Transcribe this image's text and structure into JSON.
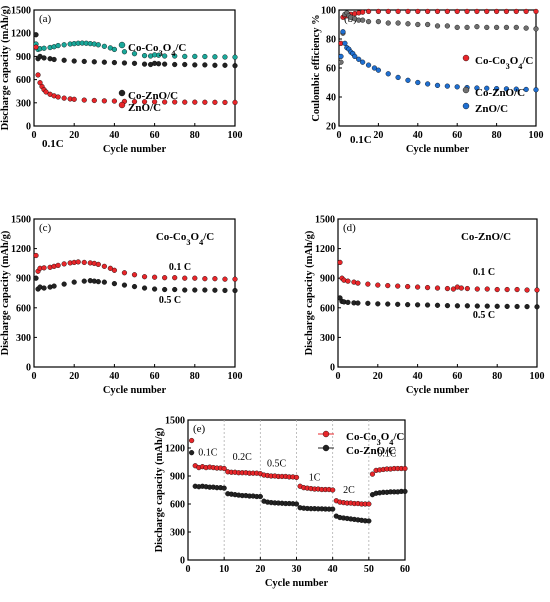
{
  "colors": {
    "red": "#e8262a",
    "black": "#222222",
    "teal": "#1aa89a",
    "blue": "#1f6fd1",
    "gray": "#707070",
    "rate_divider": "#b0b0b0"
  },
  "marker": "filled-circle",
  "chart_data": [
    {
      "id": "a",
      "type": "scatter",
      "panel_label": "(a)",
      "xlabel": "Cycle number",
      "ylabel": "Discharge capacity (mAh/g)",
      "xlim": [
        0,
        100
      ],
      "ylim": [
        0,
        1500
      ],
      "xticks": [
        0,
        20,
        40,
        60,
        80,
        100
      ],
      "yticks": [
        0,
        300,
        600,
        900,
        1200,
        1500
      ],
      "annotation": "0.1C",
      "legend_position": "right",
      "series": [
        {
          "name": "Co-Co3O4/C",
          "color": "teal",
          "x": [
            1,
            2,
            3,
            5,
            8,
            10,
            12,
            15,
            18,
            20,
            22,
            24,
            26,
            28,
            30,
            32,
            35,
            38,
            40,
            45,
            50,
            55,
            58,
            60,
            62,
            65,
            70,
            75,
            80,
            85,
            90,
            95,
            100
          ],
          "y": [
            1060,
            990,
            1000,
            1005,
            1015,
            1025,
            1040,
            1050,
            1060,
            1065,
            1070,
            1072,
            1070,
            1065,
            1060,
            1050,
            1030,
            1010,
            990,
            960,
            935,
            910,
            905,
            920,
            915,
            905,
            905,
            900,
            900,
            898,
            895,
            892,
            890
          ]
        },
        {
          "name": "Co-ZnO/C",
          "color": "black",
          "x": [
            1,
            2,
            3,
            5,
            8,
            10,
            15,
            20,
            25,
            30,
            35,
            40,
            45,
            50,
            55,
            58,
            60,
            62,
            65,
            70,
            75,
            80,
            85,
            90,
            95,
            100
          ],
          "y": [
            1180,
            870,
            900,
            880,
            870,
            860,
            850,
            840,
            835,
            830,
            825,
            820,
            815,
            810,
            800,
            795,
            810,
            805,
            800,
            795,
            795,
            790,
            790,
            785,
            785,
            780
          ]
        },
        {
          "name": "ZnO/C",
          "color": "red",
          "x": [
            1,
            2,
            3,
            4,
            5,
            6,
            8,
            10,
            12,
            15,
            18,
            20,
            25,
            30,
            35,
            40,
            45,
            50,
            55,
            60,
            65,
            70,
            75,
            80,
            85,
            90,
            95,
            100
          ],
          "y": [
            1020,
            660,
            560,
            510,
            470,
            440,
            410,
            390,
            375,
            360,
            350,
            345,
            335,
            330,
            325,
            322,
            318,
            315,
            313,
            312,
            310,
            310,
            308,
            308,
            307,
            306,
            305,
            305
          ]
        }
      ]
    },
    {
      "id": "b",
      "type": "scatter",
      "panel_label": "(b)",
      "xlabel": "Cycle number",
      "ylabel": "Coulombic efficiency %",
      "xlim": [
        0,
        100
      ],
      "ylim": [
        20,
        100
      ],
      "xticks": [
        0,
        20,
        40,
        60,
        80,
        100
      ],
      "yticks": [
        20,
        40,
        60,
        80,
        100
      ],
      "annotation": "0.1C",
      "legend_position": "right",
      "series": [
        {
          "name": "Co-Co3O4/C",
          "color": "red",
          "x": [
            1,
            2,
            3,
            4,
            5,
            6,
            8,
            10,
            12,
            15,
            20,
            25,
            30,
            35,
            40,
            45,
            50,
            55,
            60,
            65,
            70,
            75,
            80,
            85,
            90,
            95,
            100
          ],
          "y": [
            77,
            95,
            96,
            96,
            97,
            97,
            97.5,
            98,
            98.5,
            99,
            99,
            99,
            99,
            99,
            99,
            99,
            99,
            99,
            99,
            99,
            99,
            99,
            99,
            99,
            99,
            99,
            99
          ]
        },
        {
          "name": "Co-ZnO/C",
          "color": "gray",
          "x": [
            1,
            2,
            3,
            4,
            5,
            6,
            8,
            10,
            12,
            15,
            20,
            25,
            30,
            35,
            40,
            45,
            50,
            55,
            60,
            65,
            70,
            75,
            80,
            85,
            90,
            95,
            100
          ],
          "y": [
            64,
            84,
            97,
            98,
            96,
            95,
            94,
            93,
            93,
            92,
            92,
            91,
            91,
            90.5,
            90,
            90,
            89,
            89,
            88,
            88,
            88.5,
            88,
            88,
            88,
            88,
            87.5,
            87
          ]
        },
        {
          "name": "ZnO/C",
          "color": "blue",
          "x": [
            1,
            2,
            3,
            4,
            5,
            6,
            7,
            8,
            10,
            12,
            15,
            18,
            20,
            25,
            30,
            35,
            40,
            45,
            50,
            55,
            60,
            65,
            70,
            75,
            80,
            85,
            90,
            95,
            100
          ],
          "y": [
            68,
            85,
            77,
            74,
            73,
            71,
            70,
            68,
            66,
            64,
            62,
            60,
            58.5,
            56,
            53.5,
            51.5,
            50,
            49,
            48,
            47.5,
            47,
            46.5,
            46.2,
            46,
            45.8,
            45.6,
            45.4,
            45.2,
            45
          ]
        }
      ]
    },
    {
      "id": "c",
      "type": "scatter",
      "panel_label": "(c)",
      "title": "Co-Co3O4/C",
      "xlabel": "Cycle number",
      "ylabel": "Discharge capacity (mAh/g)",
      "xlim": [
        0,
        100
      ],
      "ylim": [
        0,
        1500
      ],
      "xticks": [
        0,
        20,
        40,
        60,
        80,
        100
      ],
      "yticks": [
        0,
        300,
        600,
        900,
        1200,
        1500
      ],
      "series": [
        {
          "name": "0.1 C",
          "color": "red",
          "x": [
            1,
            2,
            3,
            5,
            8,
            10,
            12,
            15,
            18,
            20,
            22,
            25,
            28,
            30,
            32,
            35,
            38,
            40,
            45,
            50,
            55,
            60,
            65,
            70,
            75,
            80,
            85,
            90,
            95,
            100
          ],
          "y": [
            1130,
            970,
            1000,
            1005,
            1010,
            1020,
            1030,
            1045,
            1055,
            1060,
            1065,
            1060,
            1055,
            1050,
            1040,
            1020,
            1000,
            980,
            955,
            935,
            915,
            910,
            905,
            905,
            900,
            900,
            895,
            895,
            890,
            890
          ]
        },
        {
          "name": "0.5 C",
          "color": "black",
          "x": [
            1,
            2,
            3,
            5,
            8,
            10,
            15,
            20,
            25,
            28,
            30,
            32,
            35,
            40,
            45,
            50,
            55,
            60,
            65,
            70,
            75,
            80,
            85,
            90,
            95,
            100
          ],
          "y": [
            900,
            790,
            810,
            800,
            810,
            820,
            840,
            860,
            870,
            875,
            870,
            865,
            860,
            845,
            830,
            815,
            800,
            790,
            785,
            785,
            780,
            780,
            780,
            778,
            776,
            775
          ]
        }
      ]
    },
    {
      "id": "d",
      "type": "scatter",
      "panel_label": "(d)",
      "title": "Co-ZnO/C",
      "xlabel": "Cycle number",
      "ylabel": "Discharge capacity (mAh/g)",
      "xlim": [
        0,
        100
      ],
      "ylim": [
        0,
        1500
      ],
      "xticks": [
        0,
        20,
        40,
        60,
        80,
        100
      ],
      "yticks": [
        0,
        300,
        600,
        900,
        1200,
        1500
      ],
      "series": [
        {
          "name": "0.1 C",
          "color": "red",
          "x": [
            1,
            2,
            3,
            5,
            8,
            10,
            15,
            20,
            25,
            30,
            35,
            40,
            45,
            50,
            55,
            58,
            60,
            62,
            65,
            70,
            75,
            80,
            85,
            90,
            95,
            100
          ],
          "y": [
            1060,
            900,
            880,
            870,
            860,
            850,
            840,
            830,
            825,
            820,
            815,
            810,
            805,
            800,
            795,
            790,
            810,
            800,
            795,
            790,
            790,
            785,
            785,
            785,
            780,
            780
          ]
        },
        {
          "name": "0.5 C",
          "color": "black",
          "x": [
            1,
            2,
            3,
            5,
            8,
            10,
            15,
            20,
            25,
            30,
            35,
            40,
            45,
            50,
            55,
            60,
            65,
            70,
            75,
            80,
            85,
            90,
            95,
            100
          ],
          "y": [
            700,
            665,
            660,
            655,
            650,
            648,
            645,
            640,
            638,
            635,
            632,
            630,
            628,
            625,
            622,
            620,
            620,
            618,
            617,
            615,
            614,
            613,
            612,
            610
          ]
        }
      ]
    },
    {
      "id": "e",
      "type": "scatter",
      "panel_label": "(e)",
      "xlabel": "Cycle number",
      "ylabel": "Discharge capacity (mAh/g)",
      "xlim": [
        0,
        60
      ],
      "ylim": [
        0,
        1500
      ],
      "xticks": [
        0,
        10,
        20,
        30,
        40,
        50,
        60
      ],
      "yticks": [
        0,
        300,
        600,
        900,
        1200,
        1500
      ],
      "rate_boundaries": [
        10,
        20,
        30,
        40,
        50
      ],
      "rate_labels": [
        {
          "text": "0.1C",
          "x": 5.5,
          "y": 1120
        },
        {
          "text": "0.2C",
          "x": 15,
          "y": 1070
        },
        {
          "text": "0.5C",
          "x": 24.5,
          "y": 1000
        },
        {
          "text": "1C",
          "x": 35,
          "y": 850
        },
        {
          "text": "2C",
          "x": 44.5,
          "y": 720
        },
        {
          "text": "0.1C",
          "x": 55,
          "y": 1110
        }
      ],
      "legend_position": "top-right",
      "series": [
        {
          "name": "Co-Co3O4/C",
          "color": "red",
          "x": [
            1,
            2,
            3,
            4,
            5,
            6,
            7,
            8,
            9,
            10,
            11,
            12,
            13,
            14,
            15,
            16,
            17,
            18,
            19,
            20,
            21,
            22,
            23,
            24,
            25,
            26,
            27,
            28,
            29,
            30,
            31,
            32,
            33,
            34,
            35,
            36,
            37,
            38,
            39,
            40,
            41,
            42,
            43,
            44,
            45,
            46,
            47,
            48,
            49,
            50,
            51,
            52,
            53,
            54,
            55,
            56,
            57,
            58,
            59,
            60
          ],
          "y": [
            1280,
            1010,
            990,
            1000,
            990,
            995,
            990,
            985,
            985,
            980,
            945,
            940,
            940,
            935,
            935,
            935,
            930,
            930,
            930,
            925,
            910,
            905,
            900,
            900,
            895,
            895,
            895,
            890,
            890,
            885,
            790,
            775,
            770,
            765,
            760,
            760,
            755,
            755,
            755,
            750,
            635,
            620,
            615,
            610,
            610,
            605,
            605,
            600,
            600,
            600,
            920,
            960,
            965,
            970,
            975,
            975,
            980,
            980,
            980,
            980
          ]
        },
        {
          "name": "Co-ZnO/C",
          "color": "black",
          "x": [
            1,
            2,
            3,
            4,
            5,
            6,
            7,
            8,
            9,
            10,
            11,
            12,
            13,
            14,
            15,
            16,
            17,
            18,
            19,
            20,
            21,
            22,
            23,
            24,
            25,
            26,
            27,
            28,
            29,
            30,
            31,
            32,
            33,
            34,
            35,
            36,
            37,
            38,
            39,
            40,
            41,
            42,
            43,
            44,
            45,
            46,
            47,
            48,
            49,
            50,
            51,
            52,
            53,
            54,
            55,
            56,
            57,
            58,
            59,
            60
          ],
          "y": [
            1150,
            790,
            785,
            790,
            785,
            780,
            780,
            775,
            775,
            770,
            710,
            705,
            700,
            695,
            690,
            690,
            685,
            685,
            680,
            680,
            630,
            620,
            615,
            612,
            610,
            608,
            605,
            605,
            603,
            600,
            560,
            555,
            552,
            550,
            550,
            548,
            548,
            546,
            545,
            545,
            470,
            455,
            450,
            445,
            440,
            435,
            430,
            425,
            420,
            418,
            700,
            715,
            720,
            725,
            725,
            730,
            730,
            730,
            735,
            735
          ]
        }
      ]
    }
  ]
}
